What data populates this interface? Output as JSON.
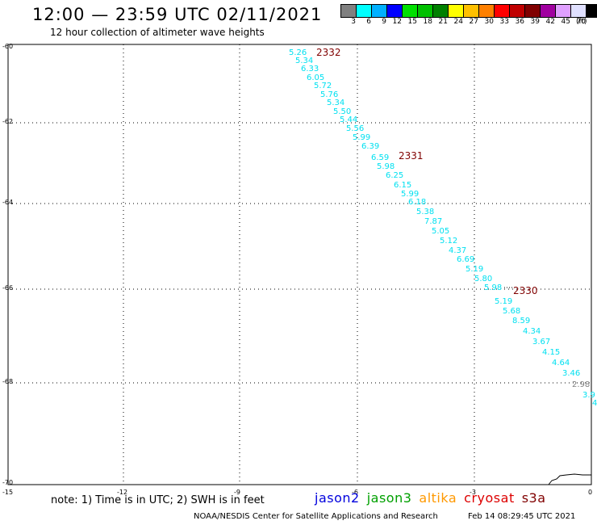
{
  "header": {
    "title": "12:00 — 23:59 UTC 02/11/2021",
    "subtitle": "12 hour collection of altimeter wave heights"
  },
  "color_scale": {
    "colors": [
      "#808080",
      "#00ffff",
      "#00b0ff",
      "#0000ff",
      "#00e000",
      "#00c000",
      "#008000",
      "#ffff00",
      "#ffc000",
      "#ff8000",
      "#ff0000",
      "#c00000",
      "#800000",
      "#a000a0",
      "#e0a0ff",
      "#e0e0ff",
      "#000000"
    ],
    "labels": [
      "3",
      "6",
      "9",
      "12",
      "15",
      "18",
      "21",
      "24",
      "27",
      "30",
      "33",
      "36",
      "39",
      "42",
      "45",
      "70"
    ],
    "unit": "(ft)"
  },
  "axes": {
    "lat_labels": [
      "-60",
      "-62",
      "-64",
      "-66",
      "-68",
      "-70"
    ],
    "lon_labels": [
      "-15",
      "-12",
      "-9",
      "-6",
      "-3",
      "0"
    ]
  },
  "track": {
    "point_color": "#00e0f0",
    "last_color": "#808080",
    "values": [
      "5.26",
      "5.34",
      "6.33",
      "6.05",
      "5.72",
      "5.76",
      "5.34",
      "5.50",
      "5.44",
      "5.56",
      "5.99",
      "6.39",
      "6.59",
      "5.98",
      "6.25",
      "6.15",
      "5.99",
      "6.18",
      "5.38",
      "7.87",
      "5.05",
      "5.12",
      "4.37",
      "6.69",
      "5.19",
      "5.80",
      "5.98",
      "5.19",
      "5.68",
      "8.59",
      "4.34",
      "3.67",
      "4.15",
      "4.64",
      "3.46",
      "2.98",
      "3.9",
      "4"
    ],
    "time_labels": [
      "2332",
      "2331",
      "2330"
    ],
    "time_color": "#800000"
  },
  "note": "note: 1) Time is in UTC; 2) SWH is in feet",
  "satellites": [
    {
      "name": "jason2",
      "color": "#0000dd"
    },
    {
      "name": "jason3",
      "color": "#00a000"
    },
    {
      "name": "altika",
      "color": "#ff9900"
    },
    {
      "name": "cryosat",
      "color": "#dd0000"
    },
    {
      "name": "s3a",
      "color": "#800000"
    }
  ],
  "footer": {
    "credit": "NOAA/NESDIS Center for Satellite Applications and Research",
    "timestamp": "Feb 14 08:29:45 UTC 2021"
  }
}
